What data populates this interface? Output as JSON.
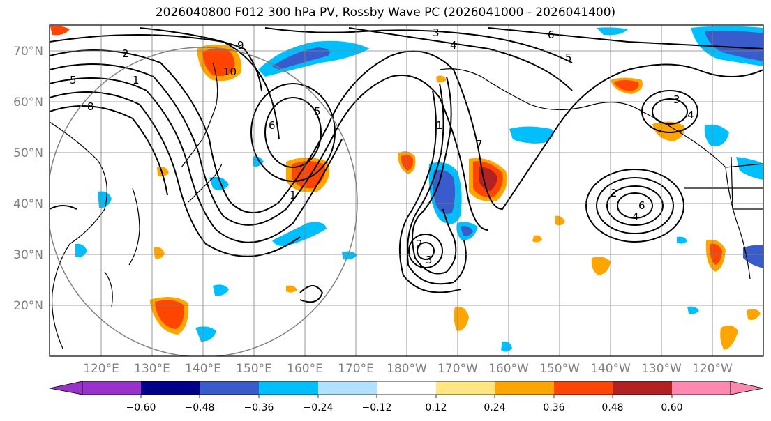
{
  "title": "2026040800 F012 300 hPa PV, Rossby Wave PC (2026041000 - 2026041400)",
  "lat_labels": [
    "70°N",
    "60°N",
    "50°N",
    "40°N",
    "30°N",
    "20°N"
  ],
  "lon_labels": [
    "120°E",
    "130°E",
    "140°E",
    "150°E",
    "160°E",
    "170°E",
    "180°W",
    "170°W",
    "160°W",
    "150°W",
    "140°W",
    "130°W",
    "120°W"
  ],
  "contour_labels": [
    "3",
    "6",
    "9",
    "4",
    "5",
    "1",
    "2",
    "10",
    "1",
    "5",
    "6",
    "7",
    "8",
    "2",
    "3",
    "4",
    "5",
    "6",
    "1",
    "2",
    "3",
    "4"
  ],
  "colorbar": {
    "ticks": [
      "−0.60",
      "−0.48",
      "−0.36",
      "−0.24",
      "−0.12",
      "0.12",
      "0.24",
      "0.36",
      "0.48",
      "0.60"
    ],
    "colors": [
      "#9932cc",
      "#00008b",
      "#3a5bcc",
      "#00bfff",
      "#b0e2ff",
      "#ffffff",
      "#ffe680",
      "#ffa500",
      "#ff4500",
      "#b22222",
      "#ff88b0"
    ]
  },
  "colors": {
    "frame": "#000000",
    "grid": "#808080",
    "label": "#808080"
  }
}
